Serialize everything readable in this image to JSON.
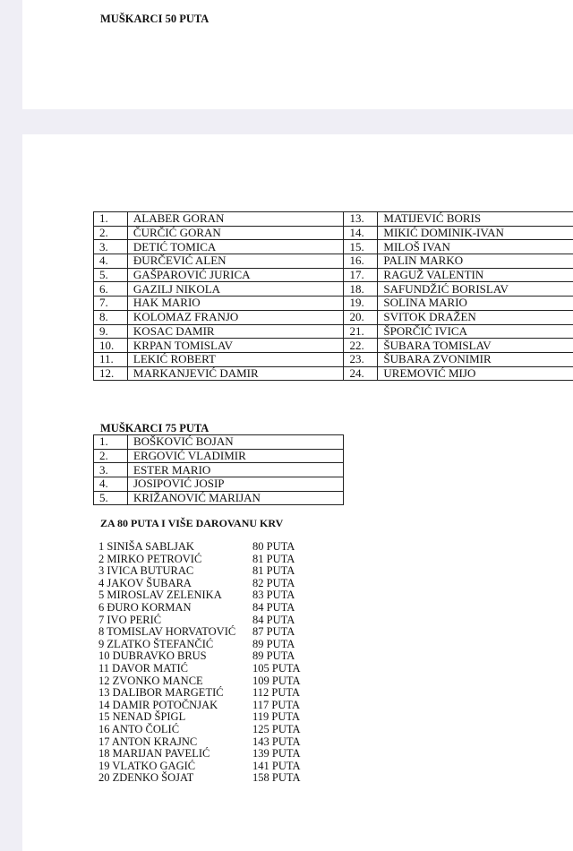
{
  "page1": {
    "title": "MUŠKARCI 50 PUTA"
  },
  "table50": [
    [
      "1.",
      "ALABER GORAN",
      "13.",
      "MATIJEVIĆ BORIS"
    ],
    [
      "2.",
      "ČURČIĆ GORAN",
      "14.",
      "MIKIĆ DOMINIK-IVAN"
    ],
    [
      "3.",
      "DETIĆ TOMICA",
      "15.",
      "MILOŠ IVAN"
    ],
    [
      "4.",
      "ĐURČEVIĆ ALEN",
      "16.",
      "PALIN MARKO"
    ],
    [
      "5.",
      "GAŠPAROVIĆ JURICA",
      "17.",
      "RAGUŽ VALENTIN"
    ],
    [
      "6.",
      "GAZILJ NIKOLA",
      "18.",
      "SAFUNDŽIĆ BORISLAV"
    ],
    [
      "7.",
      "HAK MARIO",
      "19.",
      "SOLINA MARIO"
    ],
    [
      "8.",
      "KOLOMAZ FRANJO",
      "20.",
      "SVITOK DRAŽEN"
    ],
    [
      "9.",
      "KOSAC DAMIR",
      "21.",
      "ŠPORČIĆ IVICA"
    ],
    [
      "10.",
      "KRPAN TOMISLAV",
      "22.",
      "ŠUBARA TOMISLAV"
    ],
    [
      "11.",
      "LEKIĆ ROBERT",
      "23.",
      "ŠUBARA ZVONIMIR"
    ],
    [
      "12.",
      "MARKANJEVIĆ DAMIR",
      "24.",
      "UREMOVIĆ MIJO"
    ]
  ],
  "section75": {
    "title": "MUŠKARCI 75 PUTA",
    "rows": [
      [
        "1.",
        "BOŠKOVIĆ BOJAN"
      ],
      [
        "2.",
        "ERGOVIĆ VLADIMIR"
      ],
      [
        "3.",
        "ESTER MARIO"
      ],
      [
        "4.",
        "JOSIPOVIĆ JOSIP"
      ],
      [
        "5.",
        "KRIŽANOVIĆ MARIJAN"
      ]
    ]
  },
  "section80": {
    "title": "ZA 80 PUTA I VIŠE DAROVANU KRV",
    "rows": [
      [
        "1 SINIŠA SABLJAK",
        "80 PUTA"
      ],
      [
        "2 MIRKO PETROVIĆ",
        "81 PUTA"
      ],
      [
        "3 IVICA BUTURAC",
        "81 PUTA"
      ],
      [
        "4 JAKOV ŠUBARA",
        "82 PUTA"
      ],
      [
        "5 MIROSLAV ZELENIKA",
        "83 PUTA"
      ],
      [
        "6 ĐURO KORMAN",
        "84 PUTA"
      ],
      [
        "7 IVO PERIĆ",
        "84 PUTA"
      ],
      [
        "8 TOMISLAV HORVATOVIĆ",
        "87 PUTA"
      ],
      [
        "9 ZLATKO ŠTEFANČIĆ",
        "89 PUTA"
      ],
      [
        "10 DUBRAVKO BRUS",
        "89 PUTA"
      ],
      [
        "11 DAVOR  MATIĆ",
        "105 PUTA"
      ],
      [
        "12 ZVONKO MANCE",
        "109 PUTA"
      ],
      [
        "13 DALIBOR MARGETIĆ",
        "112 PUTA"
      ],
      [
        "14 DAMIR POTOČNJAK",
        "117 PUTA"
      ],
      [
        "15 NENAD ŠPIGL",
        "119 PUTA"
      ],
      [
        "16 ANTO ČOLIĆ",
        "125 PUTA"
      ],
      [
        "17 ANTON KRAJNC",
        "143 PUTA"
      ],
      [
        "18 MARIJAN PAVELIĆ",
        "139 PUTA"
      ],
      [
        "19 VLATKO GAGIĆ",
        "141 PUTA"
      ],
      [
        "20 ZDENKO ŠOJAT",
        "158 PUTA"
      ]
    ]
  }
}
